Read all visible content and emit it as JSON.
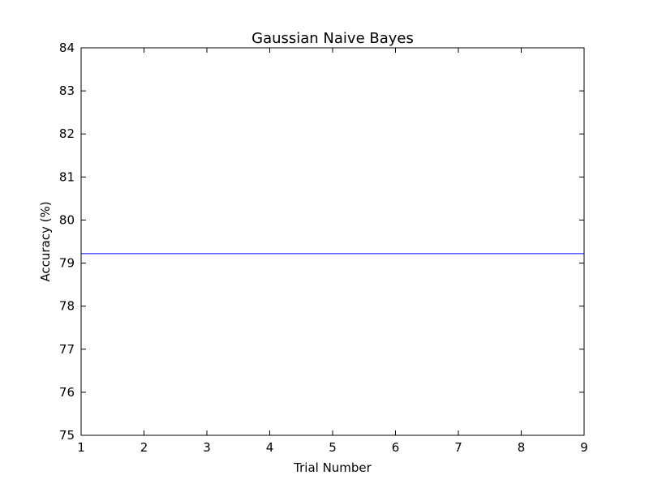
{
  "chart_data": {
    "type": "line",
    "title": "Gaussian Naive Bayes",
    "xlabel": "Trial Number",
    "ylabel": "Accuracy (%)",
    "xlim": [
      1,
      9
    ],
    "ylim": [
      75,
      84
    ],
    "x_ticks": [
      1,
      2,
      3,
      4,
      5,
      6,
      7,
      8,
      9
    ],
    "y_ticks": [
      75,
      76,
      77,
      78,
      79,
      80,
      81,
      82,
      83,
      84
    ],
    "grid": false,
    "series": [
      {
        "color": "#0000ff",
        "x": [
          1,
          2,
          3,
          4,
          5,
          6,
          7,
          8,
          9
        ],
        "y": [
          79.22,
          79.22,
          79.22,
          79.22,
          79.22,
          79.22,
          79.22,
          79.22,
          79.22
        ]
      }
    ]
  }
}
